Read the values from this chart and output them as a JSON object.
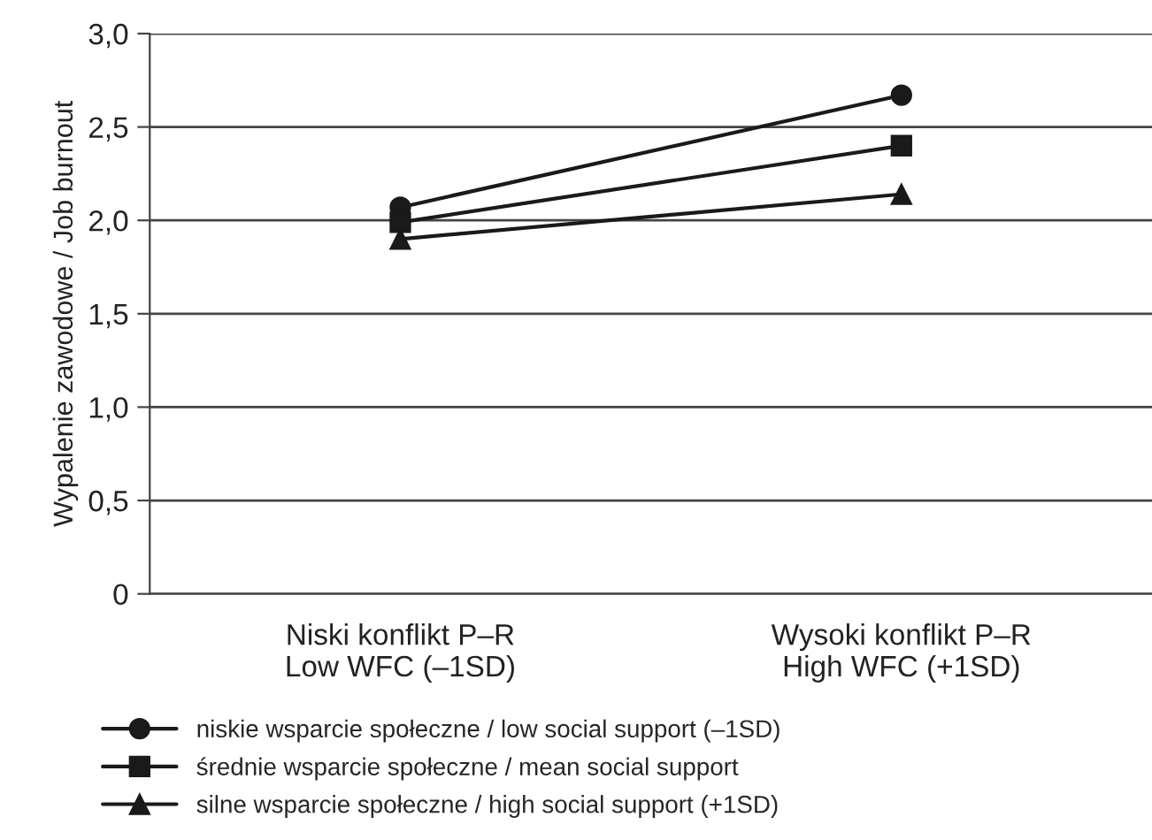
{
  "chart_data": {
    "type": "line",
    "ylabel": "Wypalenie zawodowe / Job burnout",
    "categories": [
      "Niski konflikt P–R\nLow WFC (–1SD)",
      "Wysoki konflikt P–R\nHigh WFC (+1SD)"
    ],
    "series": [
      {
        "name": "niskie wsparcie społeczne / low social support (–1SD)",
        "color": "#1a1a1a",
        "marker": "circle",
        "values": [
          2.07,
          2.67
        ]
      },
      {
        "name": "średnie wsparcie społeczne / mean social support",
        "color": "#1a1a1a",
        "marker": "square",
        "values": [
          1.99,
          2.4
        ]
      },
      {
        "name": "silne wsparcie społeczne / high social support (+1SD)",
        "color": "#1a1a1a",
        "marker": "triangle",
        "values": [
          1.9,
          2.14
        ]
      }
    ],
    "ylim": [
      0,
      3
    ],
    "yticks": [
      0,
      {
        "value": 0.5,
        "label": "0,5"
      },
      {
        "value": 1,
        "label": "1,0"
      },
      {
        "value": 1.5,
        "label": "1,5"
      },
      {
        "value": 2,
        "label": "2,0"
      },
      {
        "value": 2.5,
        "label": "2,5"
      },
      {
        "value": 3,
        "label": "3,0"
      }
    ],
    "grid": "y",
    "legend": "bottom",
    "line_style": "solid"
  }
}
